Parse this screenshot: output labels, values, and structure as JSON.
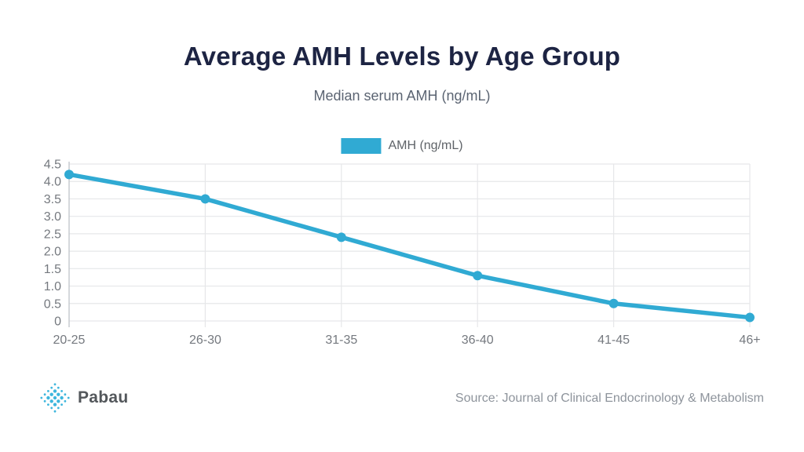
{
  "header": {
    "title": "Average AMH Levels by Age Group",
    "subtitle": "Median serum AMH (ng/mL)"
  },
  "legend": {
    "label": "AMH (ng/mL)",
    "swatch_color": "#30aad3"
  },
  "chart_data": {
    "type": "line",
    "categories": [
      "20-25",
      "26-30",
      "31-35",
      "36-40",
      "41-45",
      "46+"
    ],
    "series": [
      {
        "name": "AMH (ng/mL)",
        "values": [
          4.2,
          3.5,
          2.4,
          1.3,
          0.5,
          0.1
        ]
      }
    ],
    "title": "Average AMH Levels by Age Group",
    "subtitle": "Median serum AMH (ng/mL)",
    "xlabel": "",
    "ylabel": "",
    "ylim": [
      0,
      4.5
    ],
    "ytick_labels": [
      "0",
      "0.5",
      "1.0",
      "1.5",
      "2.0",
      "2.5",
      "3.0",
      "3.5",
      "4.0",
      "4.5"
    ],
    "grid": true,
    "legend_position": "top",
    "line_color": "#30aad3"
  },
  "footer": {
    "brand": "Pabau",
    "logo_color": "#3db6dd",
    "source": "Source: Journal of Clinical Endocrinology & Metabolism"
  }
}
